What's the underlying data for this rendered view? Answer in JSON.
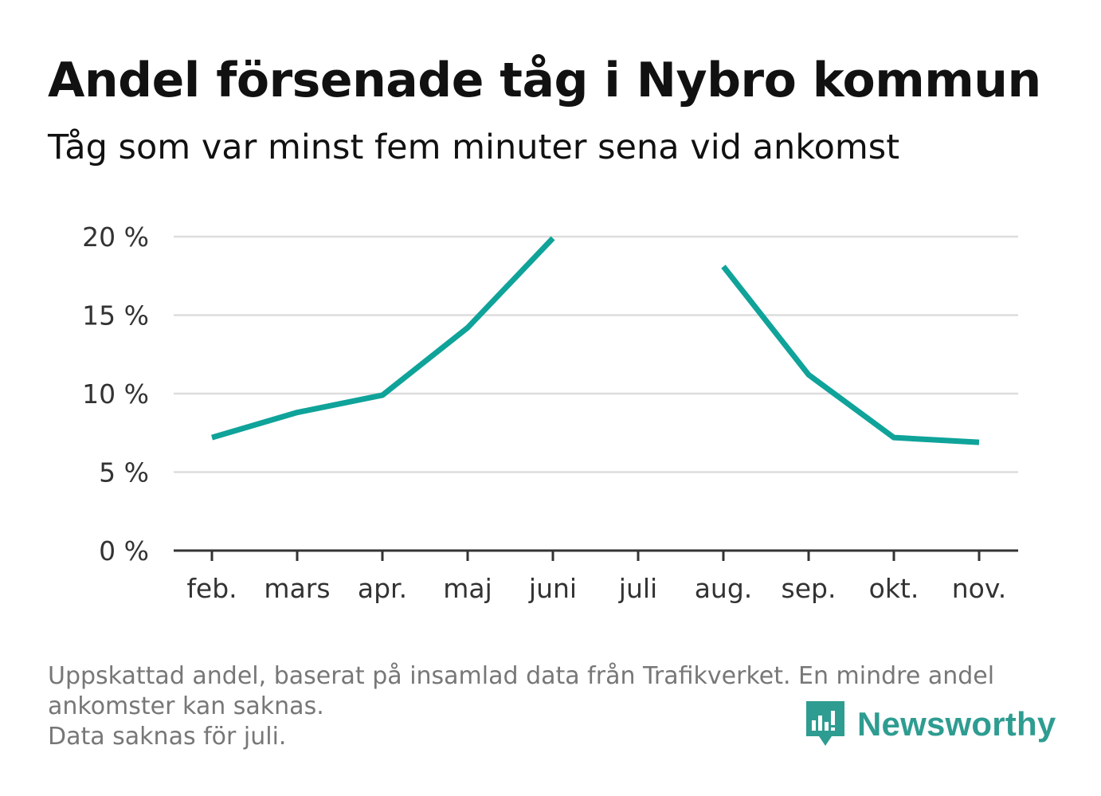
{
  "header": {
    "title": "Andel försenade tåg i Nybro kommun",
    "subtitle": "Tåg som var minst fem minuter sena vid ankomst"
  },
  "footer": {
    "note_line1": "Uppskattad andel, baserat på insamlad data från Trafikverket. En mindre andel",
    "note_line2": "ankomster kan saknas.",
    "note_line3": "Data saknas för juli.",
    "brand": "Newsworthy",
    "brand_icon": "newsworthy-logo-icon"
  },
  "colors": {
    "line": "#0fa39a",
    "grid": "#dddddd",
    "axis": "#333333",
    "brand": "#2e9c91"
  },
  "chart_data": {
    "type": "line",
    "title": "Andel försenade tåg i Nybro kommun",
    "subtitle": "Tåg som var minst fem minuter sena vid ankomst",
    "xlabel": "",
    "ylabel": "",
    "categories": [
      "feb.",
      "mars",
      "apr.",
      "maj",
      "juni",
      "juli",
      "aug.",
      "sep.",
      "okt.",
      "nov."
    ],
    "series": [
      {
        "values": [
          7.2,
          8.8,
          9.9,
          14.2,
          19.9,
          null,
          18.1,
          11.2,
          7.2,
          6.9
        ]
      }
    ],
    "ylim": [
      0,
      20
    ],
    "yticks": [
      0,
      5,
      10,
      15,
      20
    ],
    "ytick_labels": [
      "0 %",
      "5 %",
      "10 %",
      "15 %",
      "20 %"
    ],
    "grid": true,
    "legend": "none"
  }
}
